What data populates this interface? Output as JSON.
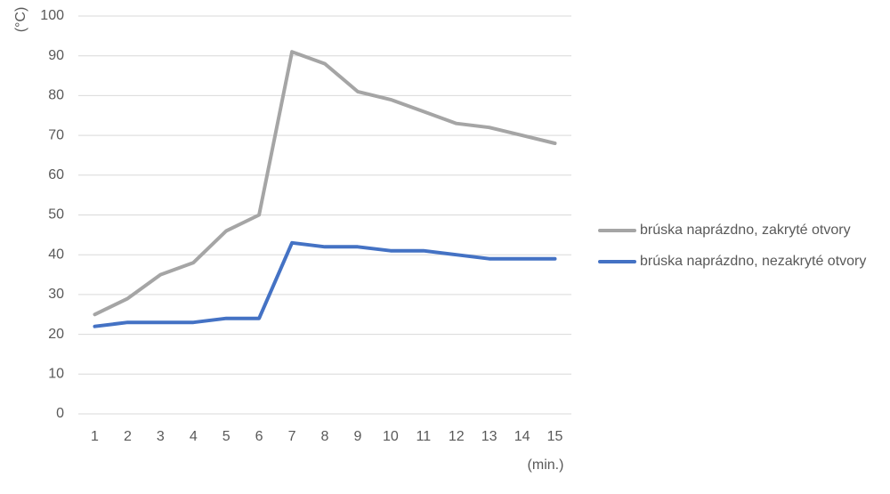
{
  "chart_data": {
    "type": "line",
    "title": "",
    "xlabel": "(min.)",
    "ylabel": "(°C)",
    "x": [
      1,
      2,
      3,
      4,
      5,
      6,
      7,
      8,
      9,
      10,
      11,
      12,
      13,
      14,
      15
    ],
    "ylim": [
      0,
      100
    ],
    "yticks": [
      0,
      10,
      20,
      30,
      40,
      50,
      60,
      70,
      80,
      90,
      100
    ],
    "grid": true,
    "legend_position": "right",
    "series": [
      {
        "name": "brúska naprázdno, zakryté otvory",
        "color": "#A5A5A5",
        "values": [
          25,
          29,
          35,
          38,
          46,
          50,
          91,
          88,
          81,
          79,
          76,
          73,
          72,
          70,
          68
        ]
      },
      {
        "name": "brúska naprázdno, nezakryté otvory",
        "color": "#4472C4",
        "values": [
          22,
          23,
          23,
          23,
          24,
          24,
          43,
          42,
          42,
          41,
          41,
          40,
          39,
          39,
          39
        ]
      }
    ],
    "gridline_color": "#D9D9D9"
  }
}
